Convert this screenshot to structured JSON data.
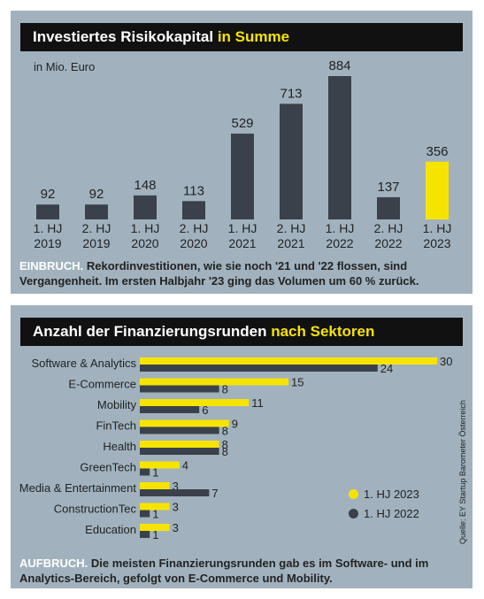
{
  "colors": {
    "panel_bg": "#a1b2be",
    "title_bg": "#111111",
    "highlight": "#f6e400",
    "dark_bar": "#3a414a"
  },
  "panel1": {
    "title_main": "Investiertes Risikokapital",
    "title_highlight": "in Summe",
    "unit": "in Mio. Euro",
    "caption_lead": "EINBRUCH.",
    "caption_text": "Rekordinvestitionen, wie sie noch '21 und '22 flossen, sind Vergangenheit. Im ersten Halbjahr '23 ging das Volumen um 60 % zurück."
  },
  "panel2": {
    "title_main": "Anzahl der Finanzierungsrunden",
    "title_highlight": "nach Sektoren",
    "caption_lead": "AUFBRUCH.",
    "caption_text": "Die meisten Finanzierungsrunden gab es im Software- und im Analytics-Bereich, gefolgt von E-Commerce und Mobility.",
    "source": "Quelle: EY Startup Barometer Österreich"
  },
  "chart_data": [
    {
      "type": "bar",
      "title": "Investiertes Risikokapital in Summe",
      "ylabel": "in Mio. Euro",
      "categories": [
        [
          "1. HJ",
          "2019"
        ],
        [
          "2. HJ",
          "2019"
        ],
        [
          "1. HJ",
          "2020"
        ],
        [
          "2. HJ",
          "2020"
        ],
        [
          "1. HJ",
          "2021"
        ],
        [
          "2. HJ",
          "2021"
        ],
        [
          "1. HJ",
          "2022"
        ],
        [
          "2. HJ",
          "2022"
        ],
        [
          "1. HJ",
          "2023"
        ]
      ],
      "values": [
        92,
        92,
        148,
        113,
        529,
        713,
        884,
        137,
        356
      ],
      "highlight_index": 8,
      "data_labels": true,
      "grid": false
    },
    {
      "type": "bar",
      "orientation": "horizontal",
      "title": "Anzahl der Finanzierungsrunden nach Sektoren",
      "categories": [
        "Software & Analytics",
        "E-Commerce",
        "Mobility",
        "FinTech",
        "Health",
        "GreenTech",
        "Media & Entertainment",
        "ConstructionTec",
        "Education"
      ],
      "series": [
        {
          "name": "1. HJ 2023",
          "color": "#f6e400",
          "values": [
            30,
            15,
            11,
            9,
            8,
            4,
            3,
            3,
            3
          ]
        },
        {
          "name": "1. HJ 2022",
          "color": "#3a414a",
          "values": [
            24,
            8,
            6,
            8,
            8,
            1,
            7,
            1,
            1
          ]
        }
      ],
      "legend": "bottom-right",
      "data_labels": true,
      "grid": false
    }
  ]
}
